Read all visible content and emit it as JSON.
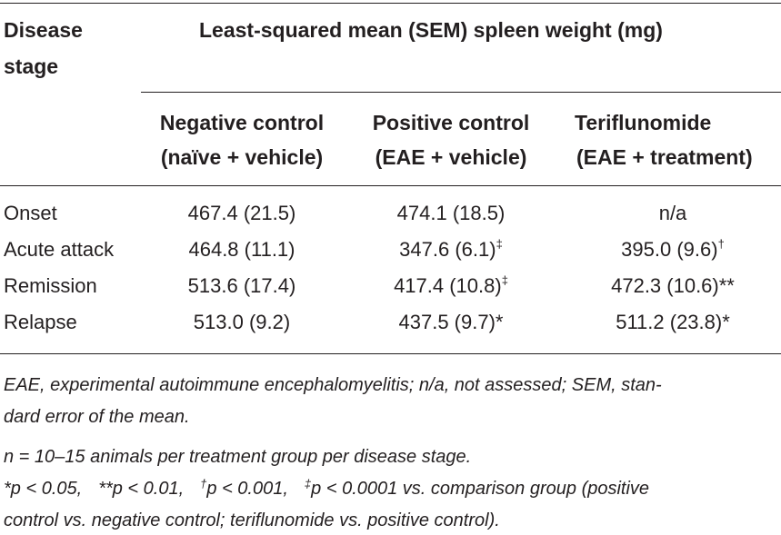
{
  "table": {
    "header": {
      "stage_line1": "Disease",
      "stage_line2": "stage",
      "span_title": "Least-squared mean (SEM) spleen weight (mg)"
    },
    "columns": [
      {
        "line1": "Negative control",
        "line2": "(naïve + vehicle)"
      },
      {
        "line1": "Positive control",
        "line2": "(EAE + vehicle)"
      },
      {
        "line1": "Teriflunomide",
        "line2": "(EAE + treatment)"
      }
    ],
    "rows": [
      {
        "stage": "Onset",
        "negative": "467.4 (21.5)",
        "positive": "474.1 (18.5)",
        "positive_mark": "",
        "teriflunomide": "n/a",
        "teriflunomide_mark": ""
      },
      {
        "stage": "Acute attack",
        "negative": "464.8 (11.1)",
        "positive": "347.6 (6.1)",
        "positive_mark": "‡",
        "teriflunomide": "395.0 (9.6)",
        "teriflunomide_mark": "†"
      },
      {
        "stage": "Remission",
        "negative": "513.6 (17.4)",
        "positive": "417.4 (10.8)",
        "positive_mark": "‡",
        "teriflunomide": "472.3 (10.6)",
        "teriflunomide_mark": "**"
      },
      {
        "stage": "Relapse",
        "negative": "513.0 (9.2)",
        "positive": "437.5 (9.7)",
        "positive_mark": "*",
        "teriflunomide": "511.2 (23.8)",
        "teriflunomide_mark": "*"
      }
    ]
  },
  "footnotes": {
    "abbrev_line1": "EAE, experimental autoimmune encephalomyelitis; n/a, not assessed; SEM, stan-",
    "abbrev_line2": "dard error of the mean.",
    "sample_size": "n = 10–15 animals per treatment group per disease stage.",
    "sig": {
      "p1": "*p < 0.05,",
      "p2": "**p < 0.01,",
      "dagger": "†",
      "p3": "p < 0.001,",
      "ddagger": "‡",
      "p4": "p < 0.0001",
      "rest": "  vs.  comparison  group  (positive",
      "line2": "control vs. negative control; teriflunomide vs. positive control)."
    }
  }
}
